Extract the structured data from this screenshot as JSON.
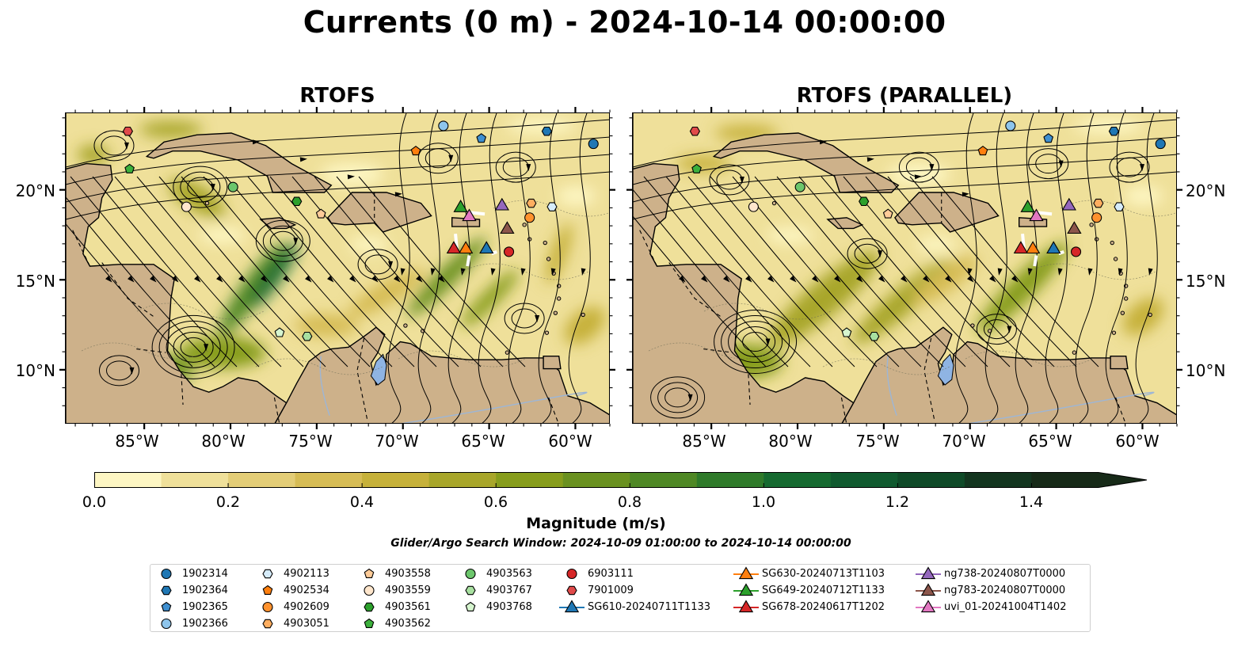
{
  "title": "Currents (0 m) - 2024-10-14 00:00:00",
  "panels": [
    {
      "title": "RTOFS"
    },
    {
      "title": "RTOFS (PARALLEL)"
    }
  ],
  "axes": {
    "lat_labels": [
      "20°N",
      "15°N",
      "10°N"
    ],
    "lon_labels": [
      "85°W",
      "80°W",
      "75°W",
      "70°W",
      "65°W",
      "60°W"
    ]
  },
  "map_extent": {
    "lon_min": -89.6,
    "lon_max": -58.0,
    "lat_min": 7.0,
    "lat_max": 24.3
  },
  "colorbar": {
    "label": "Magnitude (m/s)",
    "ticks": [
      "0.0",
      "0.2",
      "0.4",
      "0.6",
      "0.8",
      "1.0",
      "1.2",
      "1.4"
    ],
    "range": [
      0,
      1.5
    ],
    "extend": "max",
    "colors": [
      "#fdf6c3",
      "#efe09a",
      "#e3cd77",
      "#d6bc55",
      "#c6b13a",
      "#a8a62a",
      "#879d1c",
      "#6a9120",
      "#4f8825",
      "#2f7a2a",
      "#166a30",
      "#105a2f",
      "#0f4a28",
      "#13351f",
      "#172a18"
    ]
  },
  "search_window": "Glider/Argo Search Window: 2024-10-09 01:00:00 to 2024-10-14 00:00:00",
  "legend": [
    {
      "label": "1902314",
      "shape": "circle",
      "color": "#1f77b4"
    },
    {
      "label": "1902364",
      "shape": "hexagon",
      "color": "#1f77b4"
    },
    {
      "label": "1902365",
      "shape": "pentagon",
      "color": "#3f8fd0"
    },
    {
      "label": "1902366",
      "shape": "circle",
      "color": "#8ec5ec"
    },
    {
      "label": "4902113",
      "shape": "hexagon",
      "color": "#d6ecfb"
    },
    {
      "label": "4902534",
      "shape": "pentagon",
      "color": "#ff7f0e"
    },
    {
      "label": "4902609",
      "shape": "circle",
      "color": "#ff922e"
    },
    {
      "label": "4903051",
      "shape": "hexagon",
      "color": "#ffae60"
    },
    {
      "label": "4903558",
      "shape": "pentagon",
      "color": "#ffcc99"
    },
    {
      "label": "4903559",
      "shape": "circle",
      "color": "#ffe6cc"
    },
    {
      "label": "4903561",
      "shape": "hexagon",
      "color": "#2ca02c"
    },
    {
      "label": "4903562",
      "shape": "pentagon",
      "color": "#3cb03c"
    },
    {
      "label": "4903563",
      "shape": "circle",
      "color": "#6cc66c"
    },
    {
      "label": "4903767",
      "shape": "hexagon",
      "color": "#a8e0a0"
    },
    {
      "label": "4903768",
      "shape": "pentagon",
      "color": "#d6f5cf"
    },
    {
      "label": "6903111",
      "shape": "circle",
      "color": "#d62728"
    },
    {
      "label": "7901009",
      "shape": "hexagon",
      "color": "#e04a4a"
    },
    {
      "label": "SG610-20240711T1133",
      "shape": "triangle",
      "color": "#1f77b4"
    },
    {
      "label": "SG630-20240713T1103",
      "shape": "triangle",
      "color": "#ff7f0e"
    },
    {
      "label": "SG649-20240712T1133",
      "shape": "triangle",
      "color": "#2ca02c"
    },
    {
      "label": "SG678-20240617T1202",
      "shape": "triangle",
      "color": "#d62728"
    },
    {
      "label": "ng738-20240807T0000",
      "shape": "triangle",
      "color": "#9467bd"
    },
    {
      "label": "ng783-20240807T0000",
      "shape": "triangle",
      "color": "#8c564b"
    },
    {
      "label": "uvi_01-20241004T1402",
      "shape": "triangle",
      "color": "#e377c2"
    }
  ],
  "markers": [
    {
      "id": "1902314",
      "lon": -59.0,
      "lat": 22.6
    },
    {
      "id": "1902364",
      "lon": -61.7,
      "lat": 23.3
    },
    {
      "id": "1902365",
      "lon": -65.5,
      "lat": 22.9
    },
    {
      "id": "1902366",
      "lon": -67.7,
      "lat": 23.6
    },
    {
      "id": "4902113",
      "lon": -61.4,
      "lat": 19.1
    },
    {
      "id": "4902534",
      "lon": -69.3,
      "lat": 22.2
    },
    {
      "id": "4902609",
      "lon": -62.7,
      "lat": 18.5
    },
    {
      "id": "4903051",
      "lon": -62.6,
      "lat": 19.3
    },
    {
      "id": "4903558",
      "lon": -74.8,
      "lat": 18.7
    },
    {
      "id": "4903559",
      "lon": -82.6,
      "lat": 19.1
    },
    {
      "id": "4903561",
      "lon": -76.2,
      "lat": 19.4
    },
    {
      "id": "4903562",
      "lon": -85.9,
      "lat": 21.2
    },
    {
      "id": "4903563",
      "lon": -79.9,
      "lat": 20.2
    },
    {
      "id": "4903767",
      "lon": -75.6,
      "lat": 11.9
    },
    {
      "id": "4903768",
      "lon": -77.2,
      "lat": 12.1
    },
    {
      "id": "6903111",
      "lon": -63.9,
      "lat": 16.6
    },
    {
      "id": "7901009",
      "lon": -86.0,
      "lat": 23.3
    },
    {
      "id": "SG610-20240711T1133",
      "lon": -65.2,
      "lat": 16.8
    },
    {
      "id": "SG630-20240713T1103",
      "lon": -66.4,
      "lat": 16.8
    },
    {
      "id": "SG649-20240712T1133",
      "lon": -66.7,
      "lat": 19.1
    },
    {
      "id": "SG678-20240617T1202",
      "lon": -67.1,
      "lat": 16.8
    },
    {
      "id": "ng738-20240807T0000",
      "lon": -64.3,
      "lat": 19.2
    },
    {
      "id": "ng783-20240807T0000",
      "lon": -64.0,
      "lat": 17.9
    },
    {
      "id": "uvi_01-20241004T1402",
      "lon": -66.2,
      "lat": 18.6
    }
  ]
}
